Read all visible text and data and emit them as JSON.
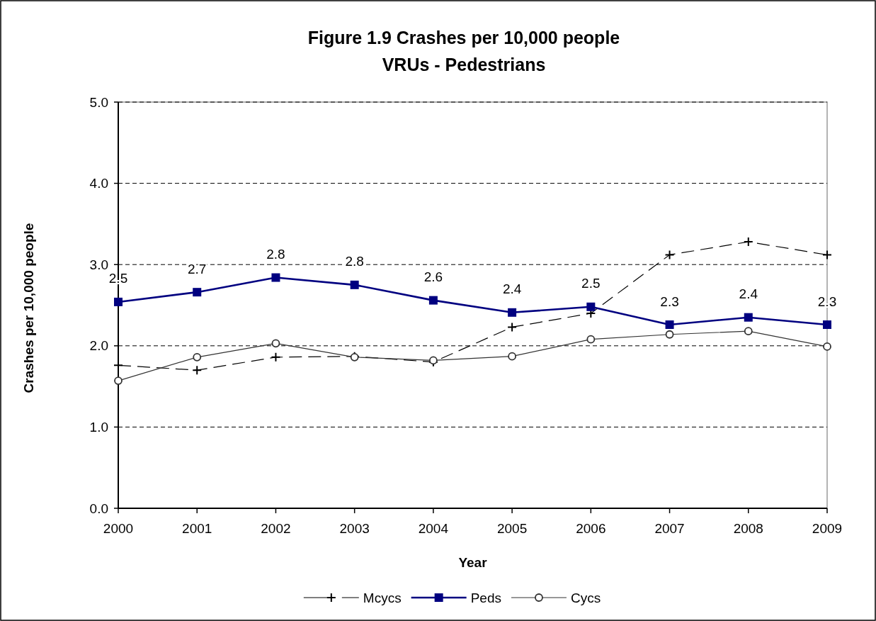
{
  "chart_data": {
    "type": "line",
    "title": "Figure 1.9 Crashes per 10,000 people",
    "subtitle": "VRUs - Pedestrians",
    "xlabel": "Year",
    "ylabel": "Crashes per 10,000 people",
    "categories": [
      "2000",
      "2001",
      "2002",
      "2003",
      "2004",
      "2005",
      "2006",
      "2007",
      "2008",
      "2009"
    ],
    "ylim": [
      0,
      5
    ],
    "yticks": [
      {
        "value": 0,
        "label": "0.0"
      },
      {
        "value": 1,
        "label": "1.0"
      },
      {
        "value": 2,
        "label": "2.0"
      },
      {
        "value": 3,
        "label": "3.0"
      },
      {
        "value": 4,
        "label": "4.0"
      },
      {
        "value": 5,
        "label": "5.0"
      }
    ],
    "grid": "y",
    "legend": "bottom",
    "series": [
      {
        "name": "Mcycs",
        "color": "#000000",
        "marker": "cross",
        "line_style": "dashed",
        "values": [
          1.76,
          1.7,
          1.86,
          1.87,
          1.8,
          2.23,
          2.4,
          3.12,
          3.28,
          3.12
        ]
      },
      {
        "name": "Peds",
        "color": "#000080",
        "marker": "square",
        "line_style": "solid",
        "values": [
          2.54,
          2.66,
          2.84,
          2.75,
          2.56,
          2.41,
          2.48,
          2.26,
          2.35,
          2.26
        ],
        "value_labels": [
          "2.5",
          "2.7",
          "2.8",
          "2.8",
          "2.6",
          "2.4",
          "2.5",
          "2.3",
          "2.4",
          "2.3"
        ]
      },
      {
        "name": "Cycs",
        "color": "#333333",
        "marker": "circle",
        "line_style": "solid",
        "values": [
          1.57,
          1.86,
          2.03,
          1.86,
          1.82,
          1.87,
          2.08,
          2.14,
          2.18,
          1.99
        ]
      }
    ]
  }
}
